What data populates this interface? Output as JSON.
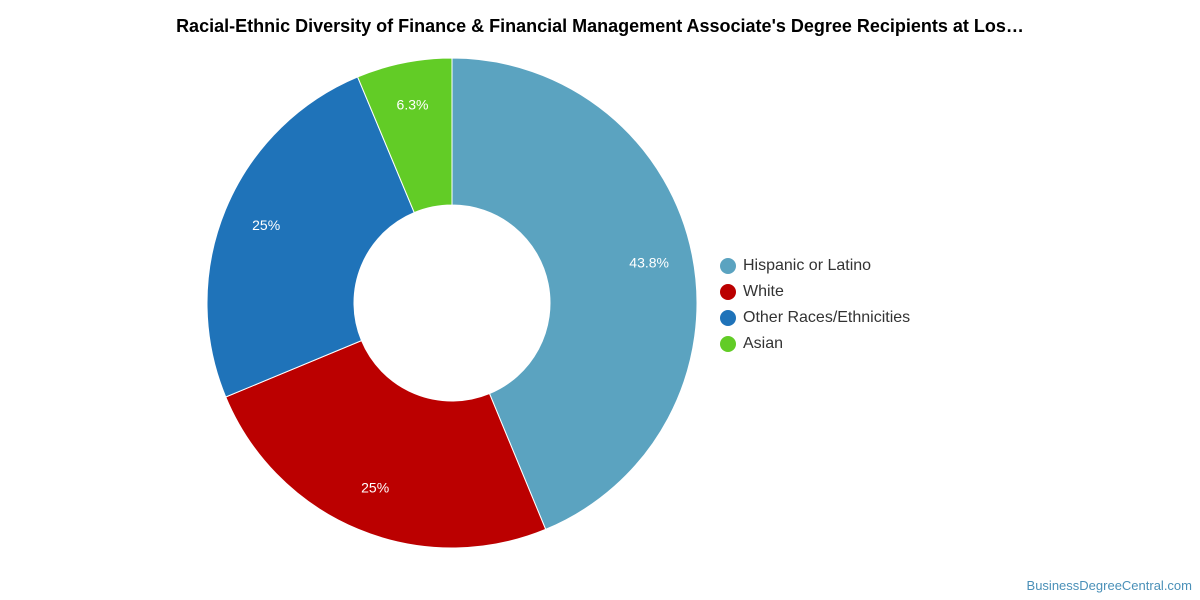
{
  "chart_data": {
    "type": "pie",
    "title": "Racial-Ethnic Diversity of Finance & Financial Management Associate's Degree Recipients at Los…",
    "categories": [
      "Hispanic or Latino",
      "White",
      "Other Races/Ethnicities",
      "Asian"
    ],
    "values": [
      43.8,
      25,
      25,
      6.3
    ],
    "data_labels": [
      "43.8%",
      "25%",
      "25%",
      "6.3%"
    ],
    "colors": [
      "#5ba3c0",
      "#bb0000",
      "#1f73b9",
      "#62cc26"
    ],
    "donut": true,
    "legend_position": "right"
  },
  "legend": {
    "items": [
      {
        "label": "Hispanic or Latino",
        "color": "#5ba3c0"
      },
      {
        "label": "White",
        "color": "#bb0000"
      },
      {
        "label": "Other Races/Ethnicities",
        "color": "#1f73b9"
      },
      {
        "label": "Asian",
        "color": "#62cc26"
      }
    ]
  },
  "footer": {
    "watermark": "BusinessDegreeCentral.com"
  }
}
